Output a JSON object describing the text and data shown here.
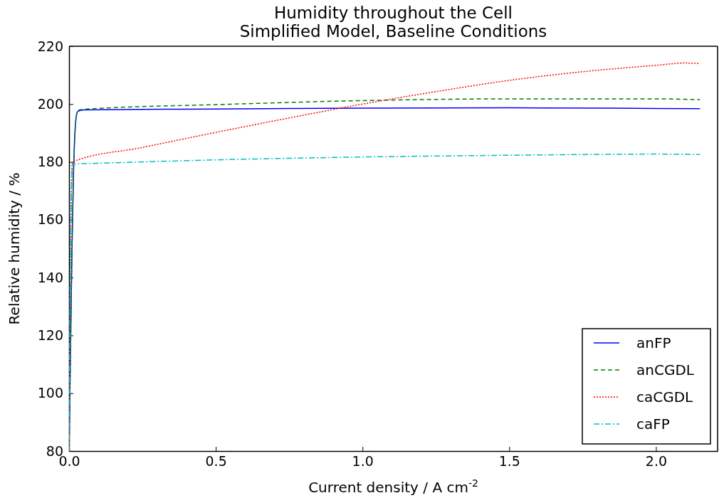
{
  "chart_data": {
    "type": "line",
    "title": "Humidity throughout the Cell\nSimplified Model, Baseline Conditions",
    "xlabel": "Current density / A cm$^{-2}$",
    "ylabel": "Relative humidity / %",
    "xlim": [
      0,
      2.21
    ],
    "xticks": [
      {
        "value": 0,
        "label": "0.0"
      },
      {
        "value": 0.5,
        "label": "0.5"
      },
      {
        "value": 1,
        "label": "1.0"
      },
      {
        "value": 1.5,
        "label": "1.5"
      },
      {
        "value": 2,
        "label": "2.0"
      }
    ],
    "ylim": [
      80,
      220
    ],
    "yticks": [
      80,
      100,
      120,
      140,
      160,
      180,
      200,
      220
    ],
    "grid": false,
    "legend": "bottom right",
    "marker": "none",
    "series": [
      {
        "name": "anFP",
        "color": "#0000ff",
        "line_style": "solid",
        "x": [
          0,
          0.005,
          0.01,
          0.015,
          0.02,
          0.025,
          0.03,
          0.05,
          0.5,
          1.0,
          1.5,
          2.0,
          2.15
        ],
        "values": [
          80,
          115,
          150,
          175,
          190,
          196,
          197.5,
          198,
          198.3,
          198.6,
          198.7,
          198.5,
          198.4
        ]
      },
      {
        "name": "anCGDL",
        "color": "#008000",
        "line_style": "dashed",
        "x": [
          0,
          0.005,
          0.01,
          0.015,
          0.02,
          0.025,
          0.03,
          0.05,
          0.5,
          1.0,
          1.5,
          2.0,
          2.15
        ],
        "values": [
          80,
          115,
          150,
          175,
          190,
          196,
          197.8,
          198.2,
          199.8,
          201.2,
          201.8,
          201.8,
          201.5
        ]
      },
      {
        "name": "caCGDL",
        "color": "#ff0000",
        "line_style": "dotted",
        "x": [
          0,
          0.004,
          0.008,
          0.012,
          0.25,
          0.5,
          0.75,
          1.0,
          1.25,
          1.5,
          1.75,
          2.0,
          2.1,
          2.15
        ],
        "values": [
          80,
          140,
          170,
          180,
          185,
          190.2,
          195.2,
          200,
          204.3,
          208.2,
          211.2,
          213.4,
          214.2,
          214
        ]
      },
      {
        "name": "caFP",
        "color": "#00bfbf",
        "line_style": "dashdot",
        "x": [
          0,
          0.004,
          0.008,
          0.012,
          0.05,
          0.5,
          1.0,
          1.5,
          2.0,
          2.15
        ],
        "values": [
          80,
          140,
          170,
          179.3,
          179.4,
          180.7,
          181.7,
          182.3,
          182.7,
          182.6
        ]
      }
    ]
  }
}
